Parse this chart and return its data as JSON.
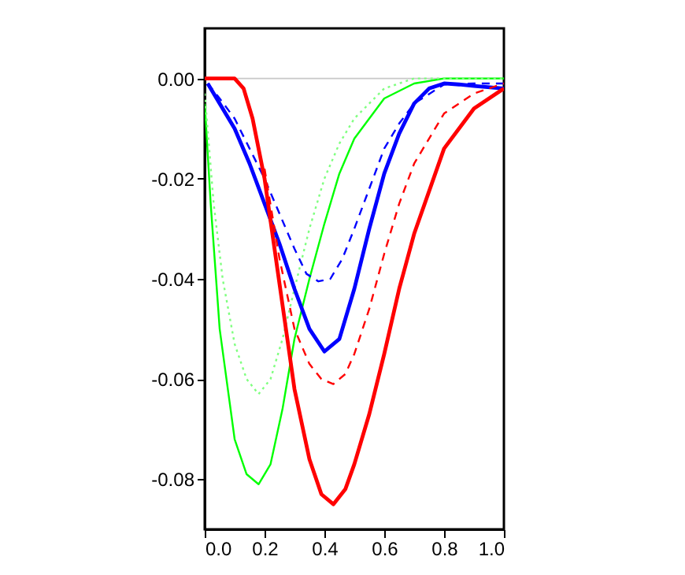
{
  "chart_data": {
    "type": "line",
    "xlim": [
      0,
      1
    ],
    "ylim": [
      -0.09,
      0.01
    ],
    "xticks": [
      {
        "value": 0,
        "label": "0.0"
      },
      0.2,
      0.4,
      0.6,
      0.8,
      {
        "value": 1,
        "label": "1.0"
      }
    ],
    "yticks": [
      {
        "value": -0.08,
        "label": "-0.08"
      },
      {
        "value": -0.06,
        "label": "-0.06"
      },
      {
        "value": -0.04,
        "label": "-0.04"
      },
      {
        "value": -0.02,
        "label": "-0.02"
      },
      {
        "value": 0,
        "label": "0.00"
      }
    ],
    "ref_lines": [
      {
        "axis": "y",
        "value": 0,
        "color": "#c8c8c8"
      }
    ],
    "series": [
      {
        "color": "#00ff00",
        "line_style": "solid",
        "x": [
          0,
          0.02,
          0.05,
          0.1,
          0.14,
          0.18,
          0.22,
          0.26,
          0.3,
          0.35,
          0.4,
          0.45,
          0.5,
          0.6,
          0.7,
          0.8,
          0.9,
          1.0
        ],
        "values": [
          -0.005,
          -0.025,
          -0.05,
          -0.072,
          -0.079,
          -0.081,
          -0.077,
          -0.066,
          -0.052,
          -0.04,
          -0.029,
          -0.019,
          -0.012,
          -0.004,
          -0.001,
          0,
          0,
          0
        ]
      },
      {
        "color": "#80ff80",
        "line_style": "dotted",
        "x": [
          0,
          0.03,
          0.06,
          0.1,
          0.14,
          0.18,
          0.22,
          0.26,
          0.3,
          0.35,
          0.4,
          0.45,
          0.5,
          0.6,
          0.7,
          0.8,
          1.0
        ],
        "values": [
          -0.003,
          -0.025,
          -0.04,
          -0.053,
          -0.06,
          -0.063,
          -0.06,
          -0.052,
          -0.042,
          -0.03,
          -0.02,
          -0.013,
          -0.008,
          -0.002,
          0,
          0,
          0
        ]
      },
      {
        "color": "#0000ff",
        "line_style": "solid",
        "x": [
          0.01,
          0.05,
          0.1,
          0.15,
          0.2,
          0.25,
          0.3,
          0.35,
          0.4,
          0.45,
          0.5,
          0.55,
          0.6,
          0.65,
          0.7,
          0.75,
          0.8,
          0.85,
          0.9,
          1.0
        ],
        "values": [
          -0.001,
          -0.005,
          -0.01,
          -0.017,
          -0.025,
          -0.033,
          -0.042,
          -0.05,
          -0.0545,
          -0.052,
          -0.042,
          -0.03,
          -0.019,
          -0.011,
          -0.005,
          -0.002,
          -0.001,
          -0.0012,
          -0.0015,
          -0.002
        ]
      },
      {
        "color": "#0000ff",
        "line_style": "dashed",
        "x": [
          0.01,
          0.05,
          0.1,
          0.15,
          0.2,
          0.25,
          0.3,
          0.34,
          0.38,
          0.42,
          0.46,
          0.5,
          0.55,
          0.6,
          0.65,
          0.7,
          0.8,
          0.9,
          1.0
        ],
        "values": [
          -0.001,
          -0.004,
          -0.008,
          -0.014,
          -0.02,
          -0.027,
          -0.034,
          -0.039,
          -0.0405,
          -0.04,
          -0.036,
          -0.03,
          -0.022,
          -0.014,
          -0.009,
          -0.005,
          -0.0012,
          -0.001,
          -0.001
        ]
      },
      {
        "color": "#ff0000",
        "line_style": "solid",
        "x": [
          0,
          0.05,
          0.1,
          0.13,
          0.16,
          0.2,
          0.25,
          0.3,
          0.35,
          0.39,
          0.43,
          0.47,
          0.5,
          0.55,
          0.6,
          0.65,
          0.7,
          0.8,
          0.9,
          1.0
        ],
        "values": [
          0,
          0,
          0,
          -0.002,
          -0.008,
          -0.02,
          -0.041,
          -0.062,
          -0.076,
          -0.083,
          -0.085,
          -0.082,
          -0.077,
          -0.067,
          -0.055,
          -0.042,
          -0.031,
          -0.014,
          -0.006,
          -0.002
        ]
      },
      {
        "color": "#ff0000",
        "line_style": "dashed",
        "x": [
          0.2,
          0.25,
          0.3,
          0.35,
          0.39,
          0.43,
          0.47,
          0.5,
          0.55,
          0.6,
          0.65,
          0.7,
          0.8,
          0.9,
          1.0
        ],
        "values": [
          -0.018,
          -0.036,
          -0.05,
          -0.057,
          -0.06,
          -0.061,
          -0.059,
          -0.055,
          -0.046,
          -0.035,
          -0.025,
          -0.017,
          -0.007,
          -0.003,
          -0.001
        ]
      }
    ]
  }
}
